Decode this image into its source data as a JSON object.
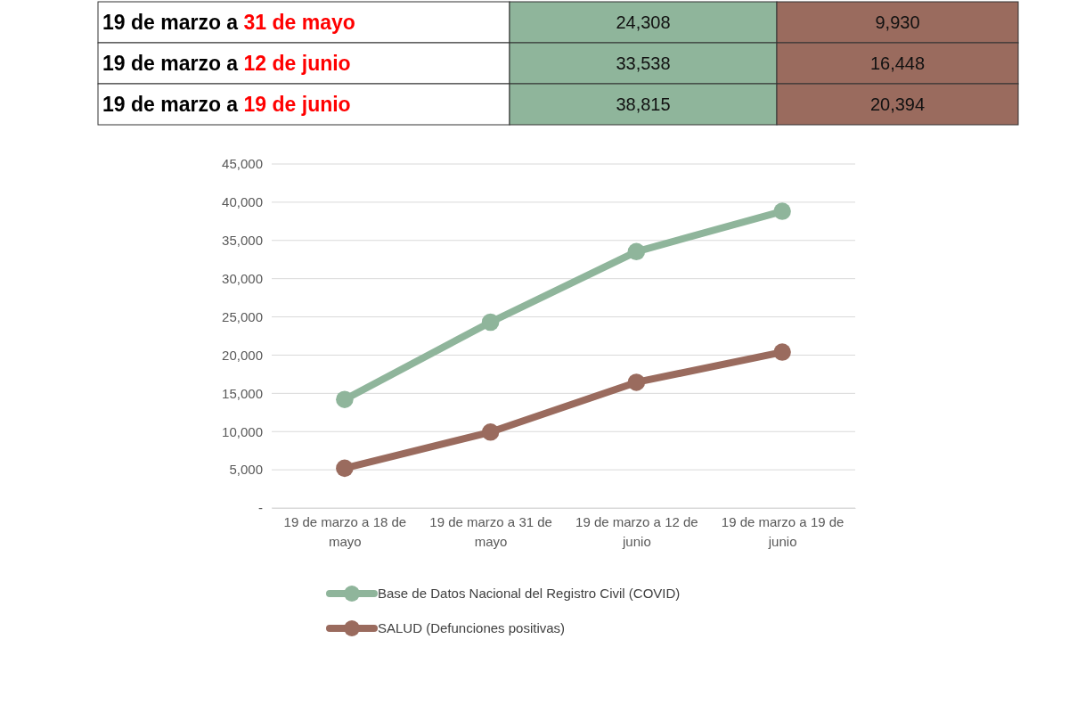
{
  "chart_data": [
    {
      "type": "other",
      "annotations": [
        "19 de marzo a 31 de mayo",
        "24,308",
        "9,930",
        "19 de marzo a 12 de junio",
        "33,538",
        "16,448",
        "19 de marzo a 19 de junio",
        "38,815",
        "20,394"
      ],
      "colors": [
        "#ffffff",
        "#8fb59b",
        "#9a6b5e"
      ]
    },
    {
      "type": "line",
      "categories": [
        "19 de marzo a 18 de mayo",
        "19 de marzo a 31 de mayo",
        "19 de marzo a 12 de junio",
        "19 de marzo a 19 de junio"
      ],
      "series": [
        {
          "name": "Base de Datos Nacional del Registro Civil (COVID)",
          "color": "#8fb59b",
          "values": [
            14200,
            24308,
            33538,
            38815
          ]
        },
        {
          "name": "SALUD (Defunciones positivas)",
          "color": "#9a6b5e",
          "values": [
            5200,
            9930,
            16448,
            20394
          ]
        }
      ],
      "ylim": [
        0,
        45000
      ],
      "yticks": [
        {
          "value": 0,
          "label": "-"
        },
        {
          "value": 5000,
          "label": "5,000"
        },
        {
          "value": 10000,
          "label": "10,000"
        },
        {
          "value": 15000,
          "label": "15,000"
        },
        {
          "value": 20000,
          "label": "20,000"
        },
        {
          "value": 25000,
          "label": "25,000"
        },
        {
          "value": 30000,
          "label": "30,000"
        },
        {
          "value": 35000,
          "label": "35,000"
        },
        {
          "value": 40000,
          "label": "40,000"
        },
        {
          "value": 45000,
          "label": "45,000"
        }
      ],
      "grid": "y",
      "legend": "bottom",
      "marker": "circle",
      "line_style": "solid"
    }
  ]
}
